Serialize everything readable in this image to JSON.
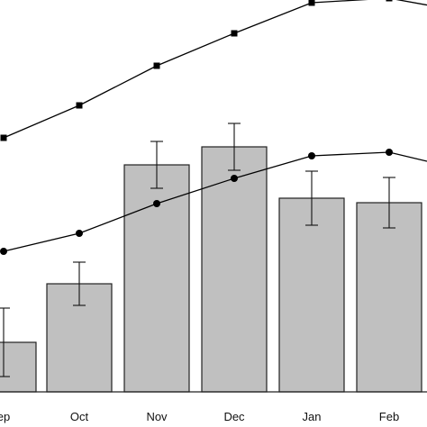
{
  "chart_data": {
    "type": "bar",
    "categories": [
      "Sep",
      "Oct",
      "Nov",
      "Dec",
      "Jan",
      "Feb"
    ],
    "tick_labels": [
      "ep",
      "Oct",
      "Nov",
      "Dec",
      "Jan",
      "Feb"
    ],
    "series": [
      {
        "kind": "bar",
        "values": [
          55,
          120,
          252,
          272,
          215,
          210
        ],
        "error": [
          38,
          24,
          26,
          26,
          30,
          28
        ]
      },
      {
        "kind": "line",
        "marker": "square",
        "values": [
          282,
          318,
          362,
          398,
          432,
          437
        ]
      },
      {
        "kind": "line",
        "marker": "circle",
        "values": [
          156,
          176,
          209,
          237,
          262,
          266
        ]
      }
    ],
    "ylim": [
      0,
      450
    ],
    "grid": false,
    "legend": "none",
    "colors": {
      "bar_fill": "#c0c0c0",
      "bar_stroke": "#222222",
      "line": "#000000",
      "axis": "#222222"
    }
  }
}
